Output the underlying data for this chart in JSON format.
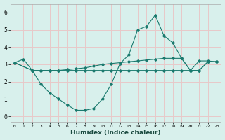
{
  "xlabel": "Humidex (Indice chaleur)",
  "x_ticks": [
    0,
    1,
    2,
    3,
    4,
    5,
    6,
    7,
    8,
    9,
    10,
    11,
    12,
    13,
    14,
    15,
    16,
    17,
    18,
    19,
    20,
    21,
    22,
    23
  ],
  "ylim": [
    -0.3,
    6.5
  ],
  "xlim": [
    -0.5,
    23.5
  ],
  "bg_color": "#d8f0ec",
  "grid_color": "#e8c8c8",
  "line_color": "#1a7a6e",
  "series": [
    {
      "x": [
        0,
        1,
        2,
        3,
        4,
        5,
        6,
        7,
        8,
        9,
        10,
        11,
        12,
        13,
        14,
        15,
        16,
        17,
        18,
        19,
        20,
        21,
        22,
        23
      ],
      "y": [
        3.1,
        3.3,
        2.65,
        1.85,
        1.35,
        1.0,
        0.65,
        0.35,
        0.35,
        0.45,
        1.0,
        1.85,
        3.05,
        3.55,
        5.0,
        5.2,
        5.85,
        4.65,
        4.25,
        3.35,
        2.65,
        3.2,
        3.2,
        3.15
      ]
    },
    {
      "x": [
        0,
        2,
        3,
        4,
        5,
        6,
        7,
        8,
        9,
        10,
        11,
        12,
        13,
        14,
        15,
        16,
        17,
        18,
        19,
        20,
        21,
        22,
        23
      ],
      "y": [
        3.1,
        2.65,
        2.65,
        2.65,
        2.65,
        2.7,
        2.75,
        2.8,
        2.9,
        3.0,
        3.05,
        3.1,
        3.15,
        3.2,
        3.25,
        3.3,
        3.35,
        3.35,
        3.35,
        2.65,
        2.65,
        3.15,
        3.15
      ]
    },
    {
      "x": [
        0,
        2,
        3,
        4,
        5,
        6,
        7,
        8,
        9,
        10,
        11,
        12,
        13,
        14,
        15,
        16,
        17,
        18,
        19,
        20,
        21,
        22,
        23
      ],
      "y": [
        3.1,
        2.65,
        2.65,
        2.65,
        2.65,
        2.65,
        2.65,
        2.65,
        2.65,
        2.65,
        2.65,
        2.65,
        2.65,
        2.65,
        2.65,
        2.65,
        2.65,
        2.65,
        2.65,
        2.65,
        2.65,
        3.15,
        3.15
      ]
    }
  ]
}
